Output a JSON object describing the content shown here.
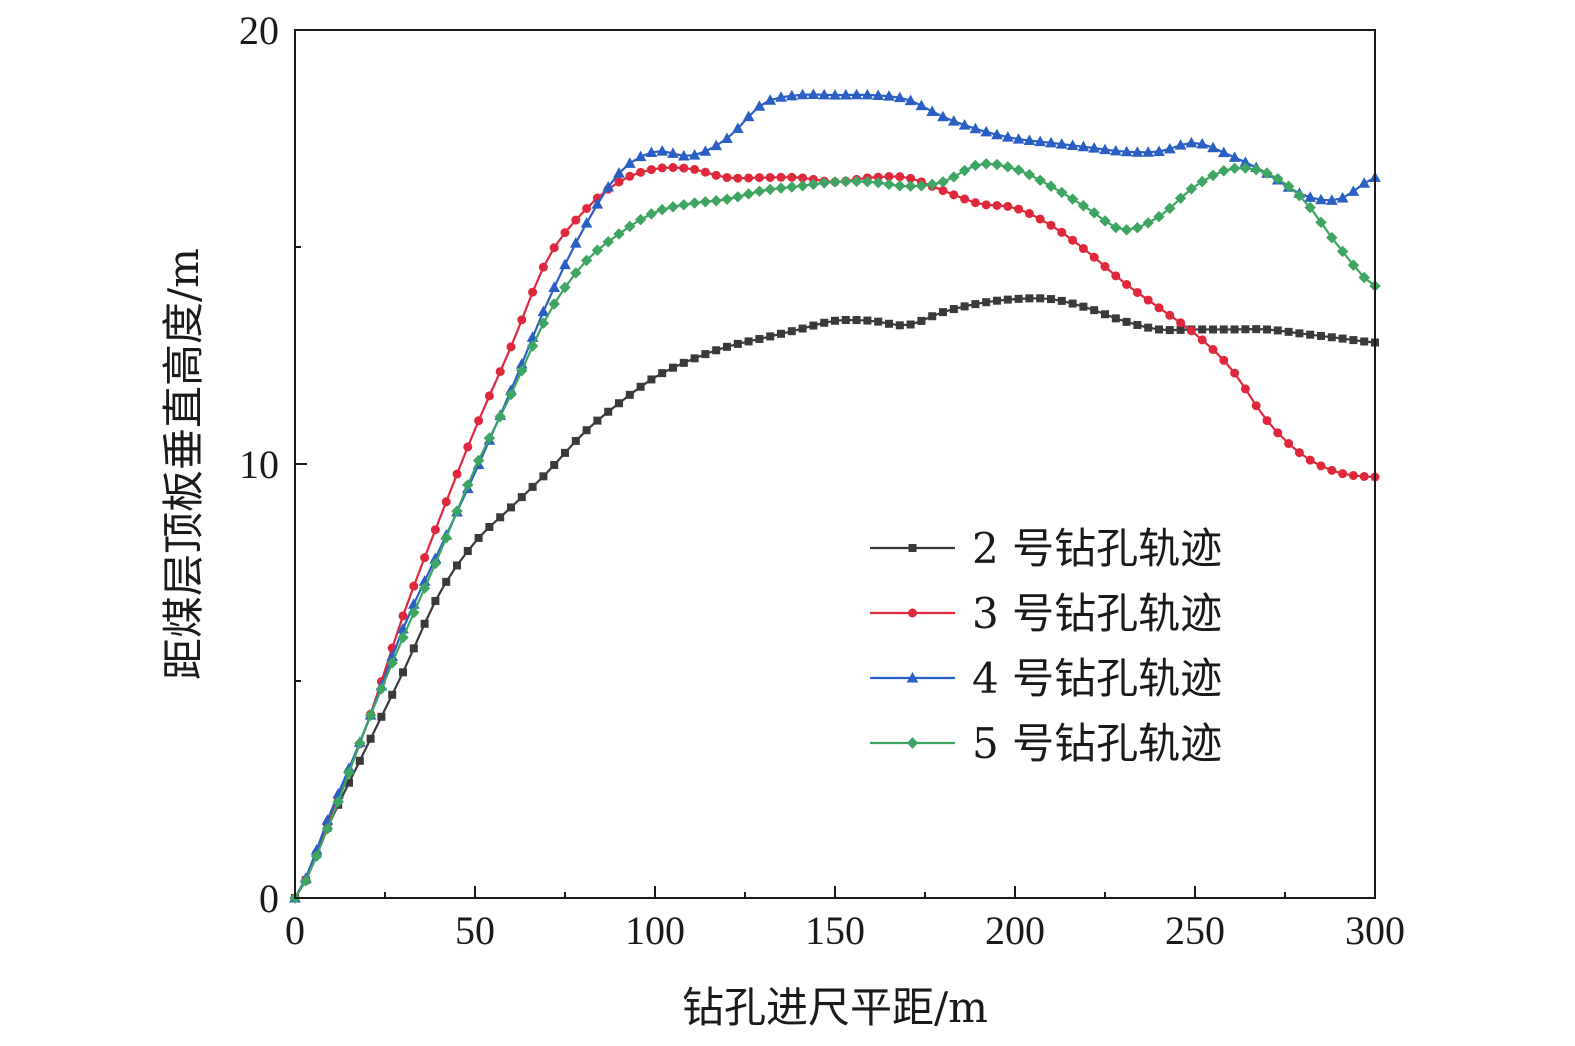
{
  "chart_data": {
    "type": "line",
    "title": "",
    "xlabel": "钻孔进尺平距/m",
    "ylabel": "距煤层顶板垂直高度/m",
    "xlim": [
      0,
      300
    ],
    "ylim": [
      0,
      20
    ],
    "x_ticks": [
      "0",
      "50",
      "100",
      "150",
      "200",
      "250",
      "300"
    ],
    "y_ticks": [
      "0",
      "10",
      "20"
    ],
    "grid": false,
    "legend_position": "lower-right",
    "series": [
      {
        "name": "2 号钻孔轨迹",
        "color": "#3a3a3a",
        "marker": "square",
        "x": [
          0,
          10,
          20,
          30,
          40,
          50,
          60,
          70,
          80,
          90,
          100,
          110,
          120,
          130,
          140,
          150,
          160,
          170,
          180,
          190,
          200,
          210,
          220,
          230,
          240,
          250,
          260,
          270,
          280,
          290,
          300
        ],
        "y": [
          0,
          1.8,
          3.5,
          5.2,
          7.0,
          8.2,
          9.0,
          9.8,
          10.7,
          11.4,
          12.0,
          12.4,
          12.7,
          12.9,
          13.1,
          13.3,
          13.3,
          13.2,
          13.5,
          13.7,
          13.8,
          13.8,
          13.6,
          13.3,
          13.1,
          13.1,
          13.1,
          13.1,
          13.0,
          12.9,
          12.8
        ]
      },
      {
        "name": "3 号钻孔轨迹",
        "color": "#e0283c",
        "marker": "circle",
        "x": [
          0,
          10,
          20,
          30,
          40,
          50,
          60,
          70,
          80,
          90,
          100,
          110,
          120,
          130,
          140,
          150,
          160,
          170,
          180,
          190,
          200,
          210,
          220,
          230,
          240,
          250,
          260,
          270,
          280,
          290,
          300
        ],
        "y": [
          0,
          1.9,
          4.0,
          6.5,
          8.7,
          10.8,
          12.7,
          14.7,
          15.8,
          16.5,
          16.8,
          16.8,
          16.6,
          16.6,
          16.6,
          16.5,
          16.6,
          16.6,
          16.3,
          16.0,
          15.9,
          15.5,
          14.9,
          14.2,
          13.6,
          13.0,
          12.2,
          11.0,
          10.2,
          9.8,
          9.7
        ]
      },
      {
        "name": "4 号钻孔轨迹",
        "color": "#2a5fc4",
        "marker": "triangle",
        "x": [
          0,
          10,
          20,
          30,
          40,
          50,
          60,
          70,
          80,
          90,
          100,
          110,
          120,
          130,
          140,
          150,
          160,
          170,
          180,
          190,
          200,
          210,
          220,
          230,
          240,
          250,
          260,
          270,
          280,
          290,
          300
        ],
        "y": [
          0,
          2.0,
          4.0,
          6.2,
          8.0,
          9.8,
          11.7,
          13.7,
          15.4,
          16.7,
          17.2,
          17.1,
          17.5,
          18.3,
          18.5,
          18.5,
          18.5,
          18.4,
          18.0,
          17.7,
          17.5,
          17.4,
          17.3,
          17.2,
          17.2,
          17.4,
          17.1,
          16.7,
          16.2,
          16.1,
          16.6
        ]
      },
      {
        "name": "5 号钻孔轨迹",
        "color": "#3ea563",
        "marker": "diamond",
        "x": [
          0,
          10,
          20,
          30,
          40,
          50,
          60,
          70,
          80,
          90,
          100,
          110,
          120,
          130,
          140,
          150,
          160,
          170,
          180,
          190,
          200,
          210,
          220,
          230,
          240,
          250,
          260,
          270,
          280,
          290,
          300
        ],
        "y": [
          0,
          1.8,
          4.0,
          6.0,
          7.9,
          9.9,
          11.6,
          13.4,
          14.6,
          15.3,
          15.8,
          16.0,
          16.1,
          16.3,
          16.4,
          16.5,
          16.5,
          16.4,
          16.5,
          16.9,
          16.8,
          16.4,
          15.9,
          15.4,
          15.7,
          16.4,
          16.8,
          16.7,
          16.1,
          15.0,
          14.1
        ]
      }
    ]
  }
}
